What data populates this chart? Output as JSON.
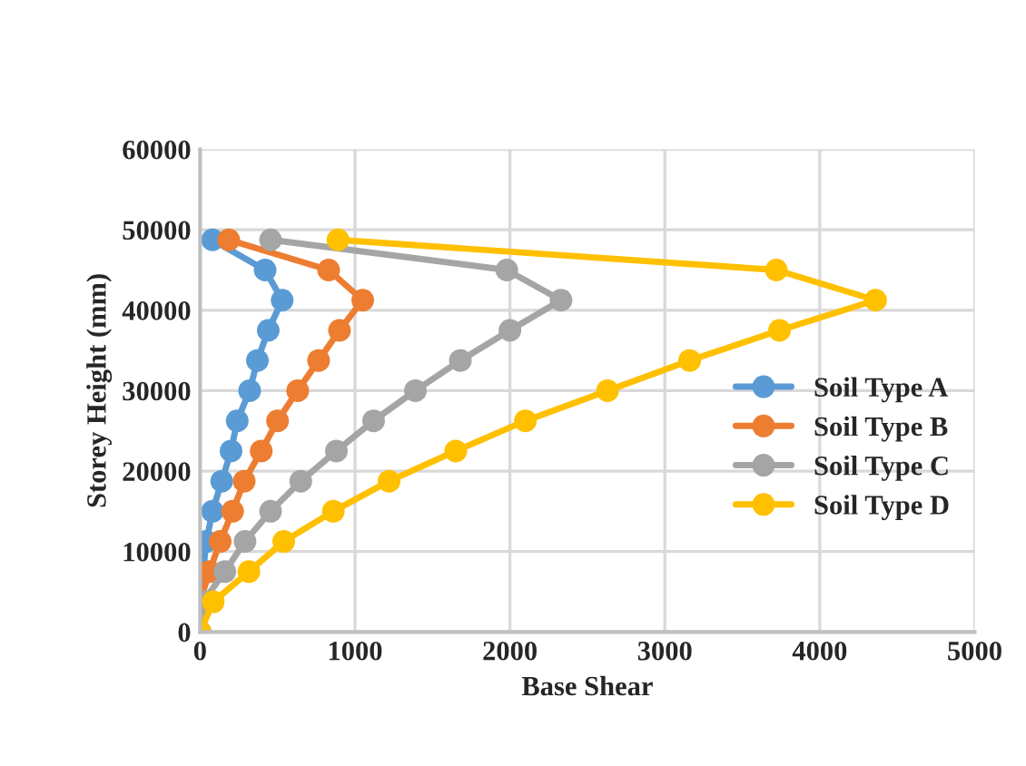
{
  "chart_data": {
    "type": "line",
    "xlabel": "Base Shear",
    "ylabel": "Storey Height (mm)",
    "xlim": [
      0,
      5000
    ],
    "xticks": [
      0,
      1000,
      2000,
      3000,
      4000,
      5000
    ],
    "ylim": [
      0,
      60000
    ],
    "yticks": [
      0,
      10000,
      20000,
      30000,
      40000,
      50000,
      60000
    ],
    "grid": true,
    "legend": "right",
    "marker": "circle",
    "line_style": "solid",
    "series": [
      {
        "name": "Soil Type A",
        "color": "#5b9bd5",
        "x": [
          0,
          10,
          20,
          40,
          80,
          140,
          200,
          240,
          320,
          370,
          440,
          530,
          420,
          80
        ],
        "values": [
          0,
          3750,
          7500,
          11250,
          15000,
          18750,
          22500,
          26250,
          30000,
          33750,
          37500,
          41250,
          45000,
          48750
        ]
      },
      {
        "name": "Soil Type B",
        "color": "#ed7d31",
        "x": [
          0,
          0,
          60,
          130,
          210,
          285,
          395,
          500,
          630,
          765,
          900,
          1050,
          830,
          185
        ],
        "values": [
          0,
          3750,
          7500,
          11250,
          15000,
          18750,
          22500,
          26250,
          30000,
          33750,
          37500,
          41250,
          45000,
          48750
        ]
      },
      {
        "name": "Soil Type C",
        "color": "#a5a5a5",
        "x": [
          0,
          20,
          160,
          290,
          455,
          650,
          880,
          1120,
          1390,
          1680,
          2000,
          2330,
          1980,
          455
        ],
        "values": [
          0,
          3750,
          7500,
          11250,
          15000,
          18750,
          22500,
          26250,
          30000,
          33750,
          37500,
          41250,
          45000,
          48750
        ]
      },
      {
        "name": "Soil Type D",
        "color": "#ffc000",
        "x": [
          0,
          85,
          315,
          540,
          860,
          1220,
          1650,
          2100,
          2630,
          3160,
          3740,
          4360,
          3720,
          890
        ],
        "values": [
          0,
          3750,
          7500,
          11250,
          15000,
          18750,
          22500,
          26250,
          30000,
          33750,
          37500,
          41250,
          45000,
          48750
        ]
      }
    ]
  }
}
